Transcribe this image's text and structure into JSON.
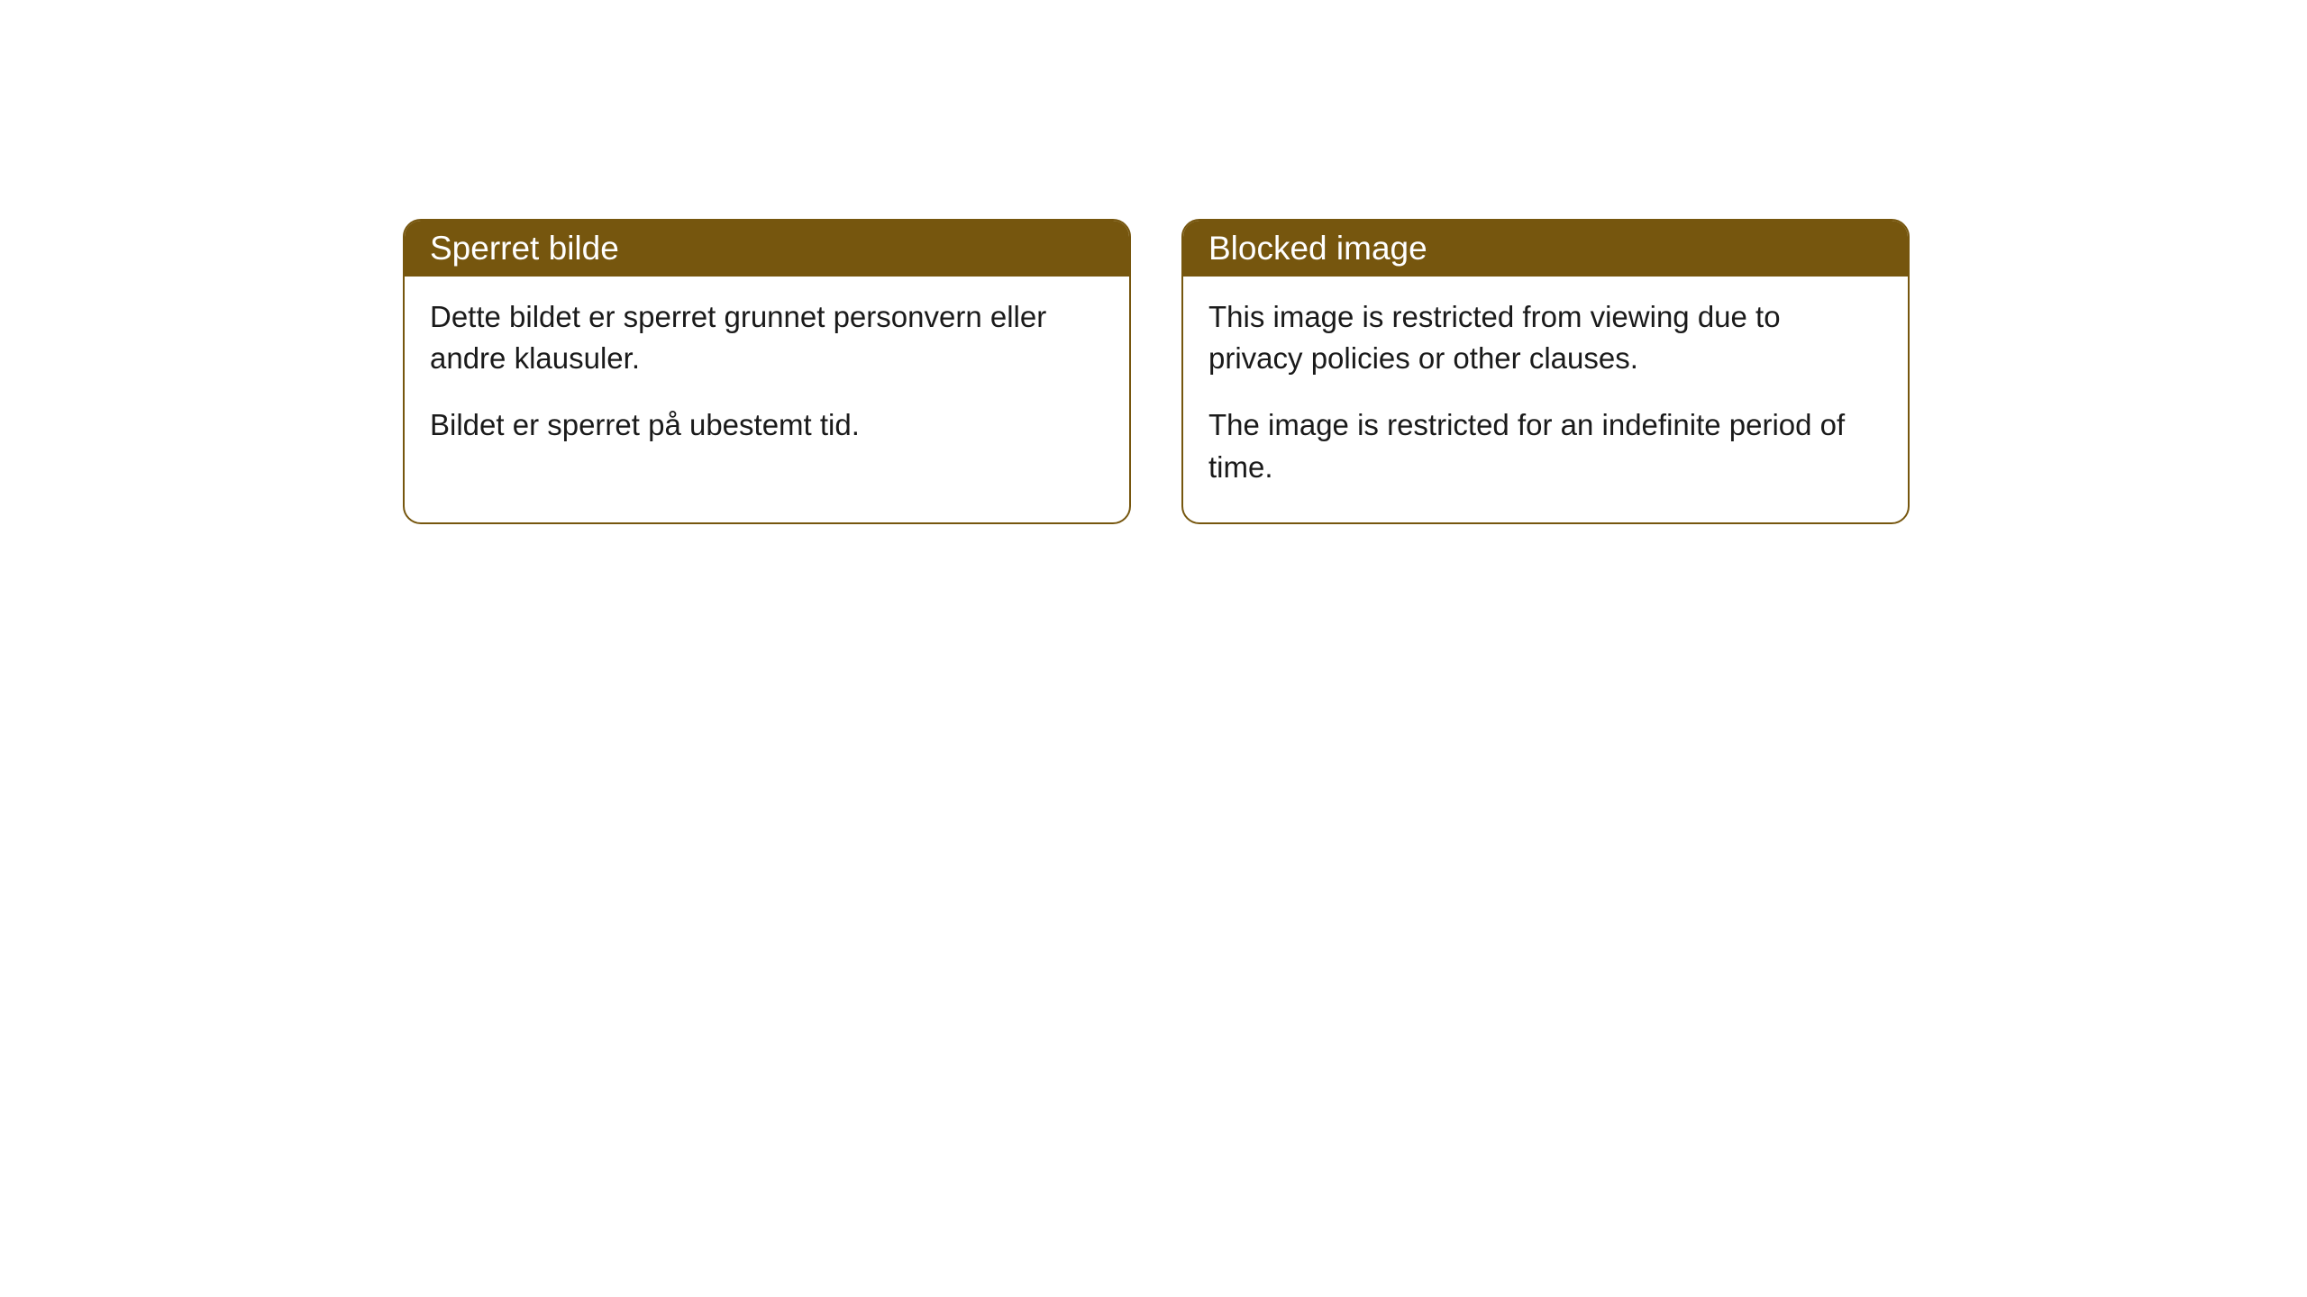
{
  "cards": [
    {
      "title": "Sperret bilde",
      "paragraph1": "Dette bildet er sperret grunnet personvern eller andre klausuler.",
      "paragraph2": "Bildet er sperret på ubestemt tid."
    },
    {
      "title": "Blocked image",
      "paragraph1": "This image is restricted from viewing due to privacy policies or other clauses.",
      "paragraph2": "The image is restricted for an indefinite period of time."
    }
  ],
  "styling": {
    "header_background": "#76560e",
    "header_text_color": "#ffffff",
    "border_color": "#76560e",
    "body_text_color": "#1a1a1a",
    "card_background": "#ffffff",
    "page_background": "#ffffff",
    "border_radius": 20,
    "title_fontsize": 37,
    "body_fontsize": 33
  }
}
